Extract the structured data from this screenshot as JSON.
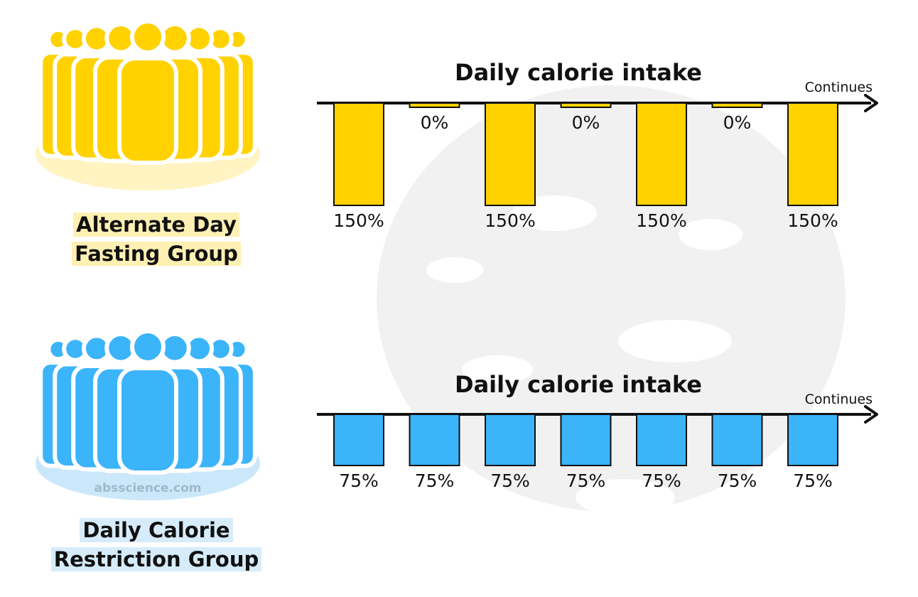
{
  "groups": [
    {
      "id": "adf",
      "label_line1": "Alternate Day",
      "label_line2": "Fasting Group",
      "icon": "people-group-icon",
      "color": "#FFD200",
      "halo": "#FFF4C2",
      "highlight": "#FFF0B3"
    },
    {
      "id": "dcr",
      "label_line1": "Daily Calorie",
      "label_line2": "Restriction Group",
      "icon": "people-group-icon",
      "color": "#3BB4FA",
      "halo": "#CBE8FB",
      "highlight": "#D6ECFA"
    }
  ],
  "watermark": "absscience.com",
  "chart_data": [
    {
      "type": "bar",
      "title": "Daily calorie intake",
      "axis_note": "Continues",
      "values": [
        150,
        0,
        150,
        0,
        150,
        0,
        150
      ],
      "labels": [
        "150%",
        "0%",
        "150%",
        "0%",
        "150%",
        "0%",
        "150%"
      ],
      "ylim": [
        0,
        150
      ],
      "orientation": "downward from axis",
      "color": "#FFD200"
    },
    {
      "type": "bar",
      "title": "Daily calorie intake",
      "axis_note": "Continues",
      "values": [
        75,
        75,
        75,
        75,
        75,
        75,
        75
      ],
      "labels": [
        "75%",
        "75%",
        "75%",
        "75%",
        "75%",
        "75%",
        "75%"
      ],
      "ylim": [
        0,
        150
      ],
      "orientation": "downward from axis",
      "color": "#3BB4FA"
    }
  ]
}
